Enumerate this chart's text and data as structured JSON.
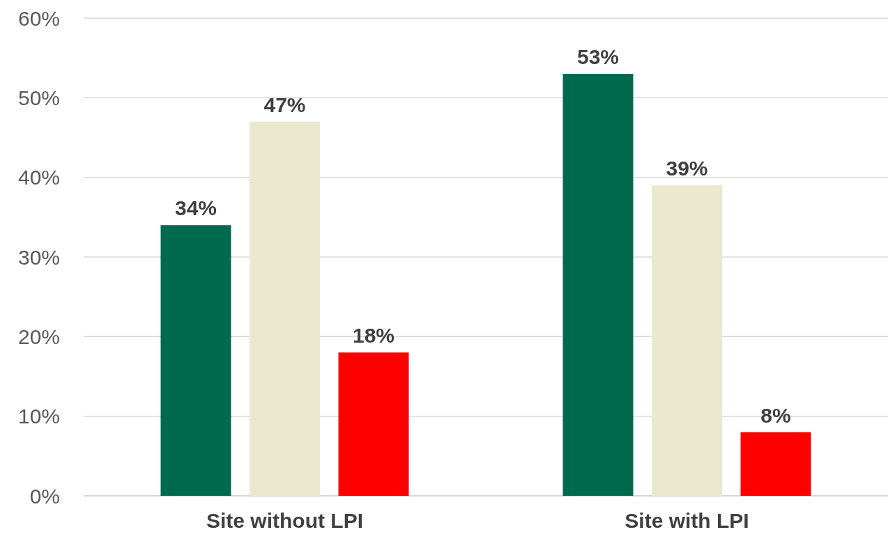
{
  "chart_data": {
    "type": "bar",
    "categories": [
      "Site without LPI",
      "Site with LPI"
    ],
    "series": [
      {
        "color": "#006a4e",
        "values": [
          34,
          53
        ],
        "value_labels": [
          "34%",
          "53%"
        ]
      },
      {
        "color": "#ebe8d0",
        "values": [
          47,
          39
        ],
        "value_labels": [
          "47%",
          "39%"
        ]
      },
      {
        "color": "#ff0000",
        "values": [
          18,
          8
        ],
        "value_labels": [
          "18%",
          "8%"
        ]
      }
    ],
    "ylim": [
      0,
      60
    ],
    "yticks": [
      {
        "value": 0,
        "label": "0%"
      },
      {
        "value": 10,
        "label": "10%"
      },
      {
        "value": 20,
        "label": "20%"
      },
      {
        "value": 30,
        "label": "30%"
      },
      {
        "value": 40,
        "label": "40%"
      },
      {
        "value": 50,
        "label": "50%"
      },
      {
        "value": 60,
        "label": "60%"
      }
    ],
    "grid": "y"
  }
}
